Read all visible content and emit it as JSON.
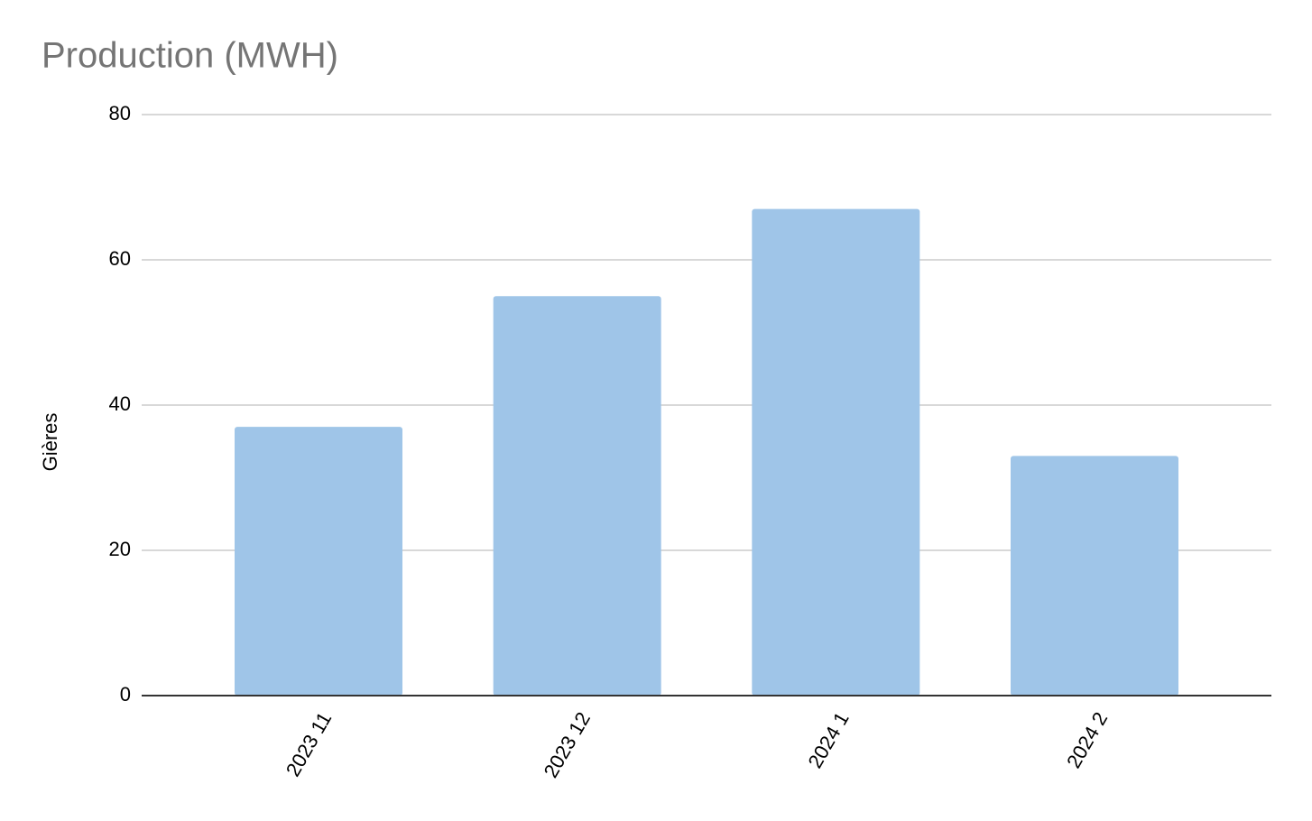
{
  "chart_data": {
    "type": "bar",
    "title": "Production (MWH)",
    "y_label": "Gières",
    "categories": [
      "2023 11",
      "2023 12",
      "2024 1",
      "2024 2"
    ],
    "values": [
      37,
      55,
      67,
      33
    ],
    "color": "#9fc5e8",
    "ylim": [
      0,
      80
    ],
    "yticks": [
      0,
      20,
      40,
      60,
      80
    ],
    "grid": true
  }
}
